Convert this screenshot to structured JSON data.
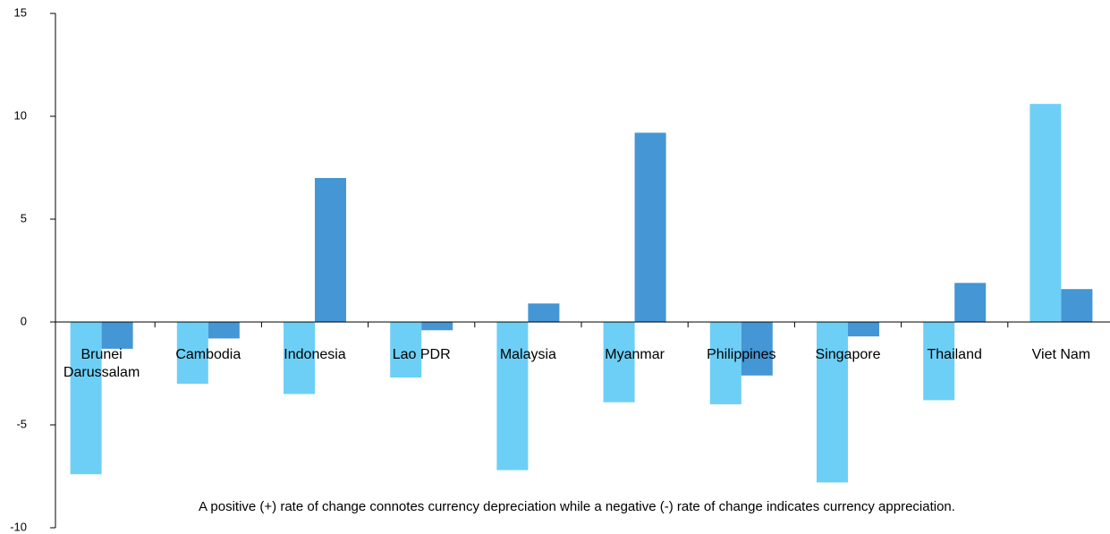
{
  "chart_data": {
    "type": "bar",
    "categories": [
      "Brunei Darussalam",
      "Cambodia",
      "Indonesia",
      "Lao PDR",
      "Malaysia",
      "Myanmar",
      "Philippines",
      "Singapore",
      "Thailand",
      "Viet Nam"
    ],
    "series": [
      {
        "color": "#6dcff6",
        "values": [
          -7.4,
          -3.0,
          -3.5,
          -2.7,
          -7.2,
          -3.9,
          -4.0,
          -7.8,
          -3.8,
          10.6
        ]
      },
      {
        "color": "#4496d4",
        "values": [
          -1.3,
          -0.8,
          7.0,
          -0.4,
          0.9,
          9.2,
          -2.6,
          -0.7,
          1.9,
          1.6
        ]
      }
    ],
    "ylim": [
      -10,
      15
    ],
    "yticks": [
      -10,
      -5,
      0,
      5,
      10,
      15
    ],
    "annotation": "A positive (+) rate of change connotes currency depreciation while a negative (-) rate of change indicates currency appreciation."
  }
}
